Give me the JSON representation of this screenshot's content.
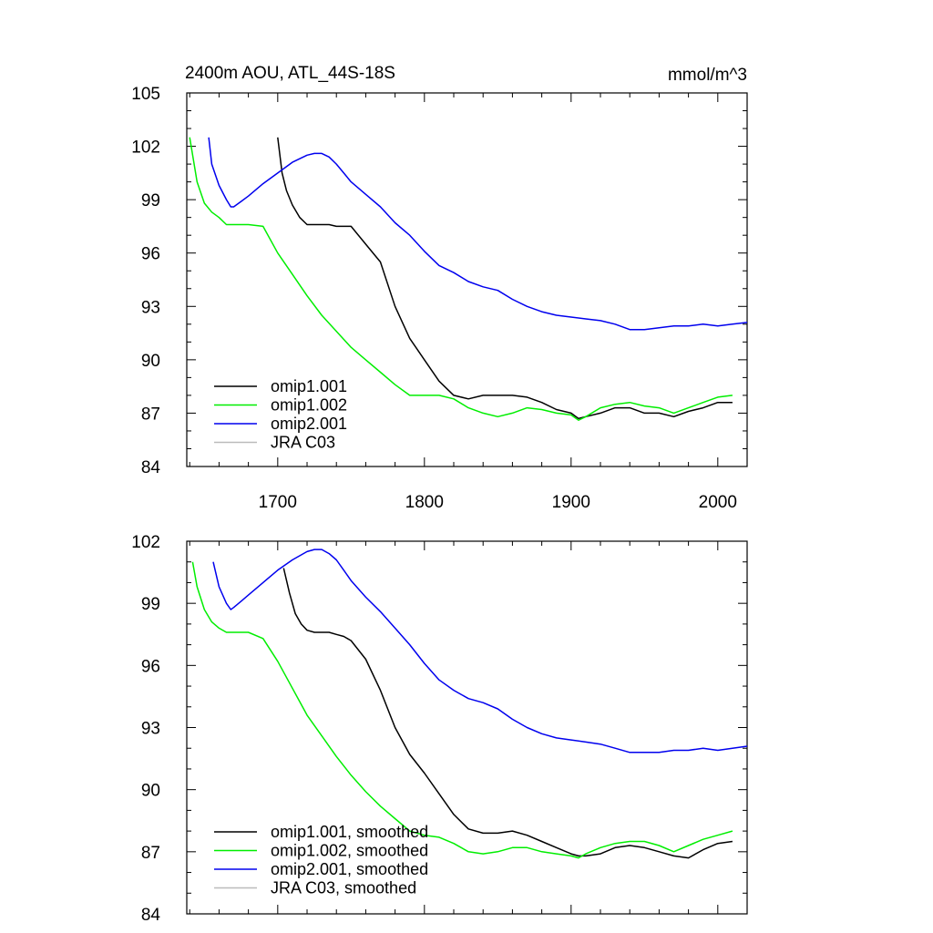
{
  "figure": {
    "title": "2400m AOU, ATL_44S-18S",
    "units": "mmol/m^3"
  },
  "chart_data": [
    {
      "type": "line",
      "title": "2400m AOU, ATL_44S-18S",
      "units_label": "mmol/m^3",
      "xlim": [
        1638,
        2020
      ],
      "ylim": [
        84,
        105
      ],
      "x_ticks": [
        1700,
        1800,
        1900,
        2000
      ],
      "y_ticks": [
        84,
        87,
        90,
        93,
        96,
        99,
        102,
        105
      ],
      "grid": false,
      "legend_position": "bottom-left",
      "series": [
        {
          "name": "omip1.001",
          "color": "#000000",
          "x": [
            1700,
            1703,
            1706,
            1710,
            1715,
            1720,
            1725,
            1730,
            1735,
            1740,
            1745,
            1750,
            1760,
            1770,
            1780,
            1790,
            1800,
            1810,
            1820,
            1830,
            1840,
            1850,
            1860,
            1870,
            1880,
            1890,
            1900,
            1905,
            1910,
            1920,
            1930,
            1940,
            1950,
            1960,
            1970,
            1980,
            1990,
            2000,
            2010
          ],
          "y": [
            102.5,
            100.5,
            99.5,
            98.7,
            98.0,
            97.6,
            97.6,
            97.6,
            97.6,
            97.5,
            97.5,
            97.5,
            96.5,
            95.5,
            93.0,
            91.2,
            90.0,
            88.8,
            88.0,
            87.8,
            88.0,
            88.0,
            88.0,
            87.9,
            87.6,
            87.2,
            87.0,
            86.7,
            86.8,
            87.0,
            87.3,
            87.3,
            87.0,
            87.0,
            86.8,
            87.1,
            87.3,
            87.6,
            87.6
          ]
        },
        {
          "name": "omip1.002",
          "color": "#00ee00",
          "x": [
            1640,
            1645,
            1650,
            1655,
            1660,
            1665,
            1670,
            1675,
            1680,
            1690,
            1700,
            1710,
            1720,
            1730,
            1740,
            1750,
            1760,
            1770,
            1780,
            1790,
            1800,
            1810,
            1820,
            1830,
            1840,
            1850,
            1860,
            1870,
            1880,
            1890,
            1900,
            1905,
            1910,
            1920,
            1930,
            1940,
            1950,
            1960,
            1970,
            1980,
            1990,
            2000,
            2010
          ],
          "y": [
            102.5,
            100.0,
            98.8,
            98.3,
            98.0,
            97.6,
            97.6,
            97.6,
            97.6,
            97.5,
            96.0,
            94.8,
            93.6,
            92.5,
            91.6,
            90.7,
            90.0,
            89.3,
            88.6,
            88.0,
            88.0,
            88.0,
            87.8,
            87.3,
            87.0,
            86.8,
            87.0,
            87.3,
            87.2,
            87.0,
            86.9,
            86.6,
            86.8,
            87.3,
            87.5,
            87.6,
            87.4,
            87.3,
            87.0,
            87.3,
            87.6,
            87.9,
            88.0
          ]
        },
        {
          "name": "omip2.001",
          "color": "#0000ee",
          "x": [
            1653,
            1655,
            1660,
            1665,
            1668,
            1670,
            1675,
            1680,
            1690,
            1700,
            1710,
            1720,
            1725,
            1730,
            1735,
            1740,
            1745,
            1750,
            1760,
            1770,
            1780,
            1790,
            1800,
            1810,
            1820,
            1830,
            1840,
            1850,
            1860,
            1870,
            1880,
            1890,
            1900,
            1910,
            1920,
            1930,
            1940,
            1950,
            1960,
            1970,
            1980,
            1990,
            2000,
            2010,
            2020
          ],
          "y": [
            102.5,
            101.0,
            99.8,
            99.0,
            98.6,
            98.6,
            98.9,
            99.2,
            99.9,
            100.5,
            101.1,
            101.5,
            101.6,
            101.6,
            101.4,
            101.0,
            100.5,
            100.0,
            99.3,
            98.6,
            97.7,
            97.0,
            96.1,
            95.3,
            94.9,
            94.4,
            94.1,
            93.9,
            93.4,
            93.0,
            92.7,
            92.5,
            92.4,
            92.3,
            92.2,
            92.0,
            91.7,
            91.7,
            91.8,
            91.9,
            91.9,
            92.0,
            91.9,
            92.0,
            92.1
          ]
        },
        {
          "name": "JRA C03",
          "color": "#bbbbbb",
          "x": [],
          "y": []
        }
      ]
    },
    {
      "type": "line",
      "xlim": [
        1638,
        2020
      ],
      "ylim": [
        84,
        102
      ],
      "x_ticks": [
        1700,
        1800,
        1900,
        2000
      ],
      "y_ticks": [
        84,
        87,
        90,
        93,
        96,
        99,
        102
      ],
      "grid": false,
      "legend_position": "bottom-left",
      "series": [
        {
          "name": "omip1.001, smoothed",
          "color": "#000000",
          "x": [
            1704,
            1708,
            1712,
            1716,
            1720,
            1725,
            1730,
            1735,
            1740,
            1745,
            1750,
            1760,
            1770,
            1780,
            1790,
            1800,
            1810,
            1820,
            1830,
            1840,
            1850,
            1860,
            1870,
            1880,
            1890,
            1900,
            1905,
            1910,
            1920,
            1930,
            1940,
            1950,
            1960,
            1970,
            1980,
            1990,
            2000,
            2010
          ],
          "y": [
            100.7,
            99.5,
            98.5,
            98.0,
            97.7,
            97.6,
            97.6,
            97.6,
            97.5,
            97.4,
            97.2,
            96.3,
            94.8,
            93.0,
            91.7,
            90.8,
            89.8,
            88.8,
            88.1,
            87.9,
            87.9,
            88.0,
            87.8,
            87.5,
            87.2,
            86.9,
            86.8,
            86.8,
            86.9,
            87.2,
            87.3,
            87.2,
            87.0,
            86.8,
            86.7,
            87.1,
            87.4,
            87.5
          ]
        },
        {
          "name": "omip1.002, smoothed",
          "color": "#00ee00",
          "x": [
            1642,
            1645,
            1650,
            1655,
            1660,
            1665,
            1670,
            1675,
            1680,
            1690,
            1700,
            1710,
            1720,
            1730,
            1740,
            1750,
            1760,
            1770,
            1780,
            1790,
            1800,
            1810,
            1820,
            1830,
            1840,
            1850,
            1860,
            1870,
            1880,
            1890,
            1900,
            1905,
            1910,
            1920,
            1930,
            1940,
            1950,
            1960,
            1970,
            1980,
            1990,
            2000,
            2010
          ],
          "y": [
            101.0,
            99.8,
            98.7,
            98.1,
            97.8,
            97.6,
            97.6,
            97.6,
            97.6,
            97.3,
            96.2,
            94.9,
            93.6,
            92.6,
            91.6,
            90.7,
            89.9,
            89.2,
            88.6,
            88.0,
            87.8,
            87.7,
            87.4,
            87.0,
            86.9,
            87.0,
            87.2,
            87.2,
            87.0,
            86.9,
            86.8,
            86.7,
            86.9,
            87.2,
            87.4,
            87.5,
            87.5,
            87.3,
            87.0,
            87.3,
            87.6,
            87.8,
            88.0
          ]
        },
        {
          "name": "omip2.001, smoothed",
          "color": "#0000ee",
          "x": [
            1656,
            1660,
            1665,
            1668,
            1670,
            1675,
            1680,
            1690,
            1700,
            1710,
            1720,
            1725,
            1730,
            1735,
            1740,
            1745,
            1750,
            1760,
            1770,
            1780,
            1790,
            1800,
            1810,
            1820,
            1830,
            1840,
            1850,
            1860,
            1870,
            1880,
            1890,
            1900,
            1910,
            1920,
            1930,
            1940,
            1950,
            1960,
            1970,
            1980,
            1990,
            2000,
            2010,
            2020
          ],
          "y": [
            101.0,
            99.8,
            99.0,
            98.7,
            98.8,
            99.1,
            99.4,
            100.0,
            100.6,
            101.1,
            101.5,
            101.6,
            101.6,
            101.4,
            101.1,
            100.6,
            100.1,
            99.3,
            98.6,
            97.8,
            97.0,
            96.1,
            95.3,
            94.8,
            94.4,
            94.2,
            93.9,
            93.4,
            93.0,
            92.7,
            92.5,
            92.4,
            92.3,
            92.2,
            92.0,
            91.8,
            91.8,
            91.8,
            91.9,
            91.9,
            92.0,
            91.9,
            92.0,
            92.1
          ]
        },
        {
          "name": "JRA C03, smoothed",
          "color": "#bbbbbb",
          "x": [],
          "y": []
        }
      ]
    }
  ]
}
